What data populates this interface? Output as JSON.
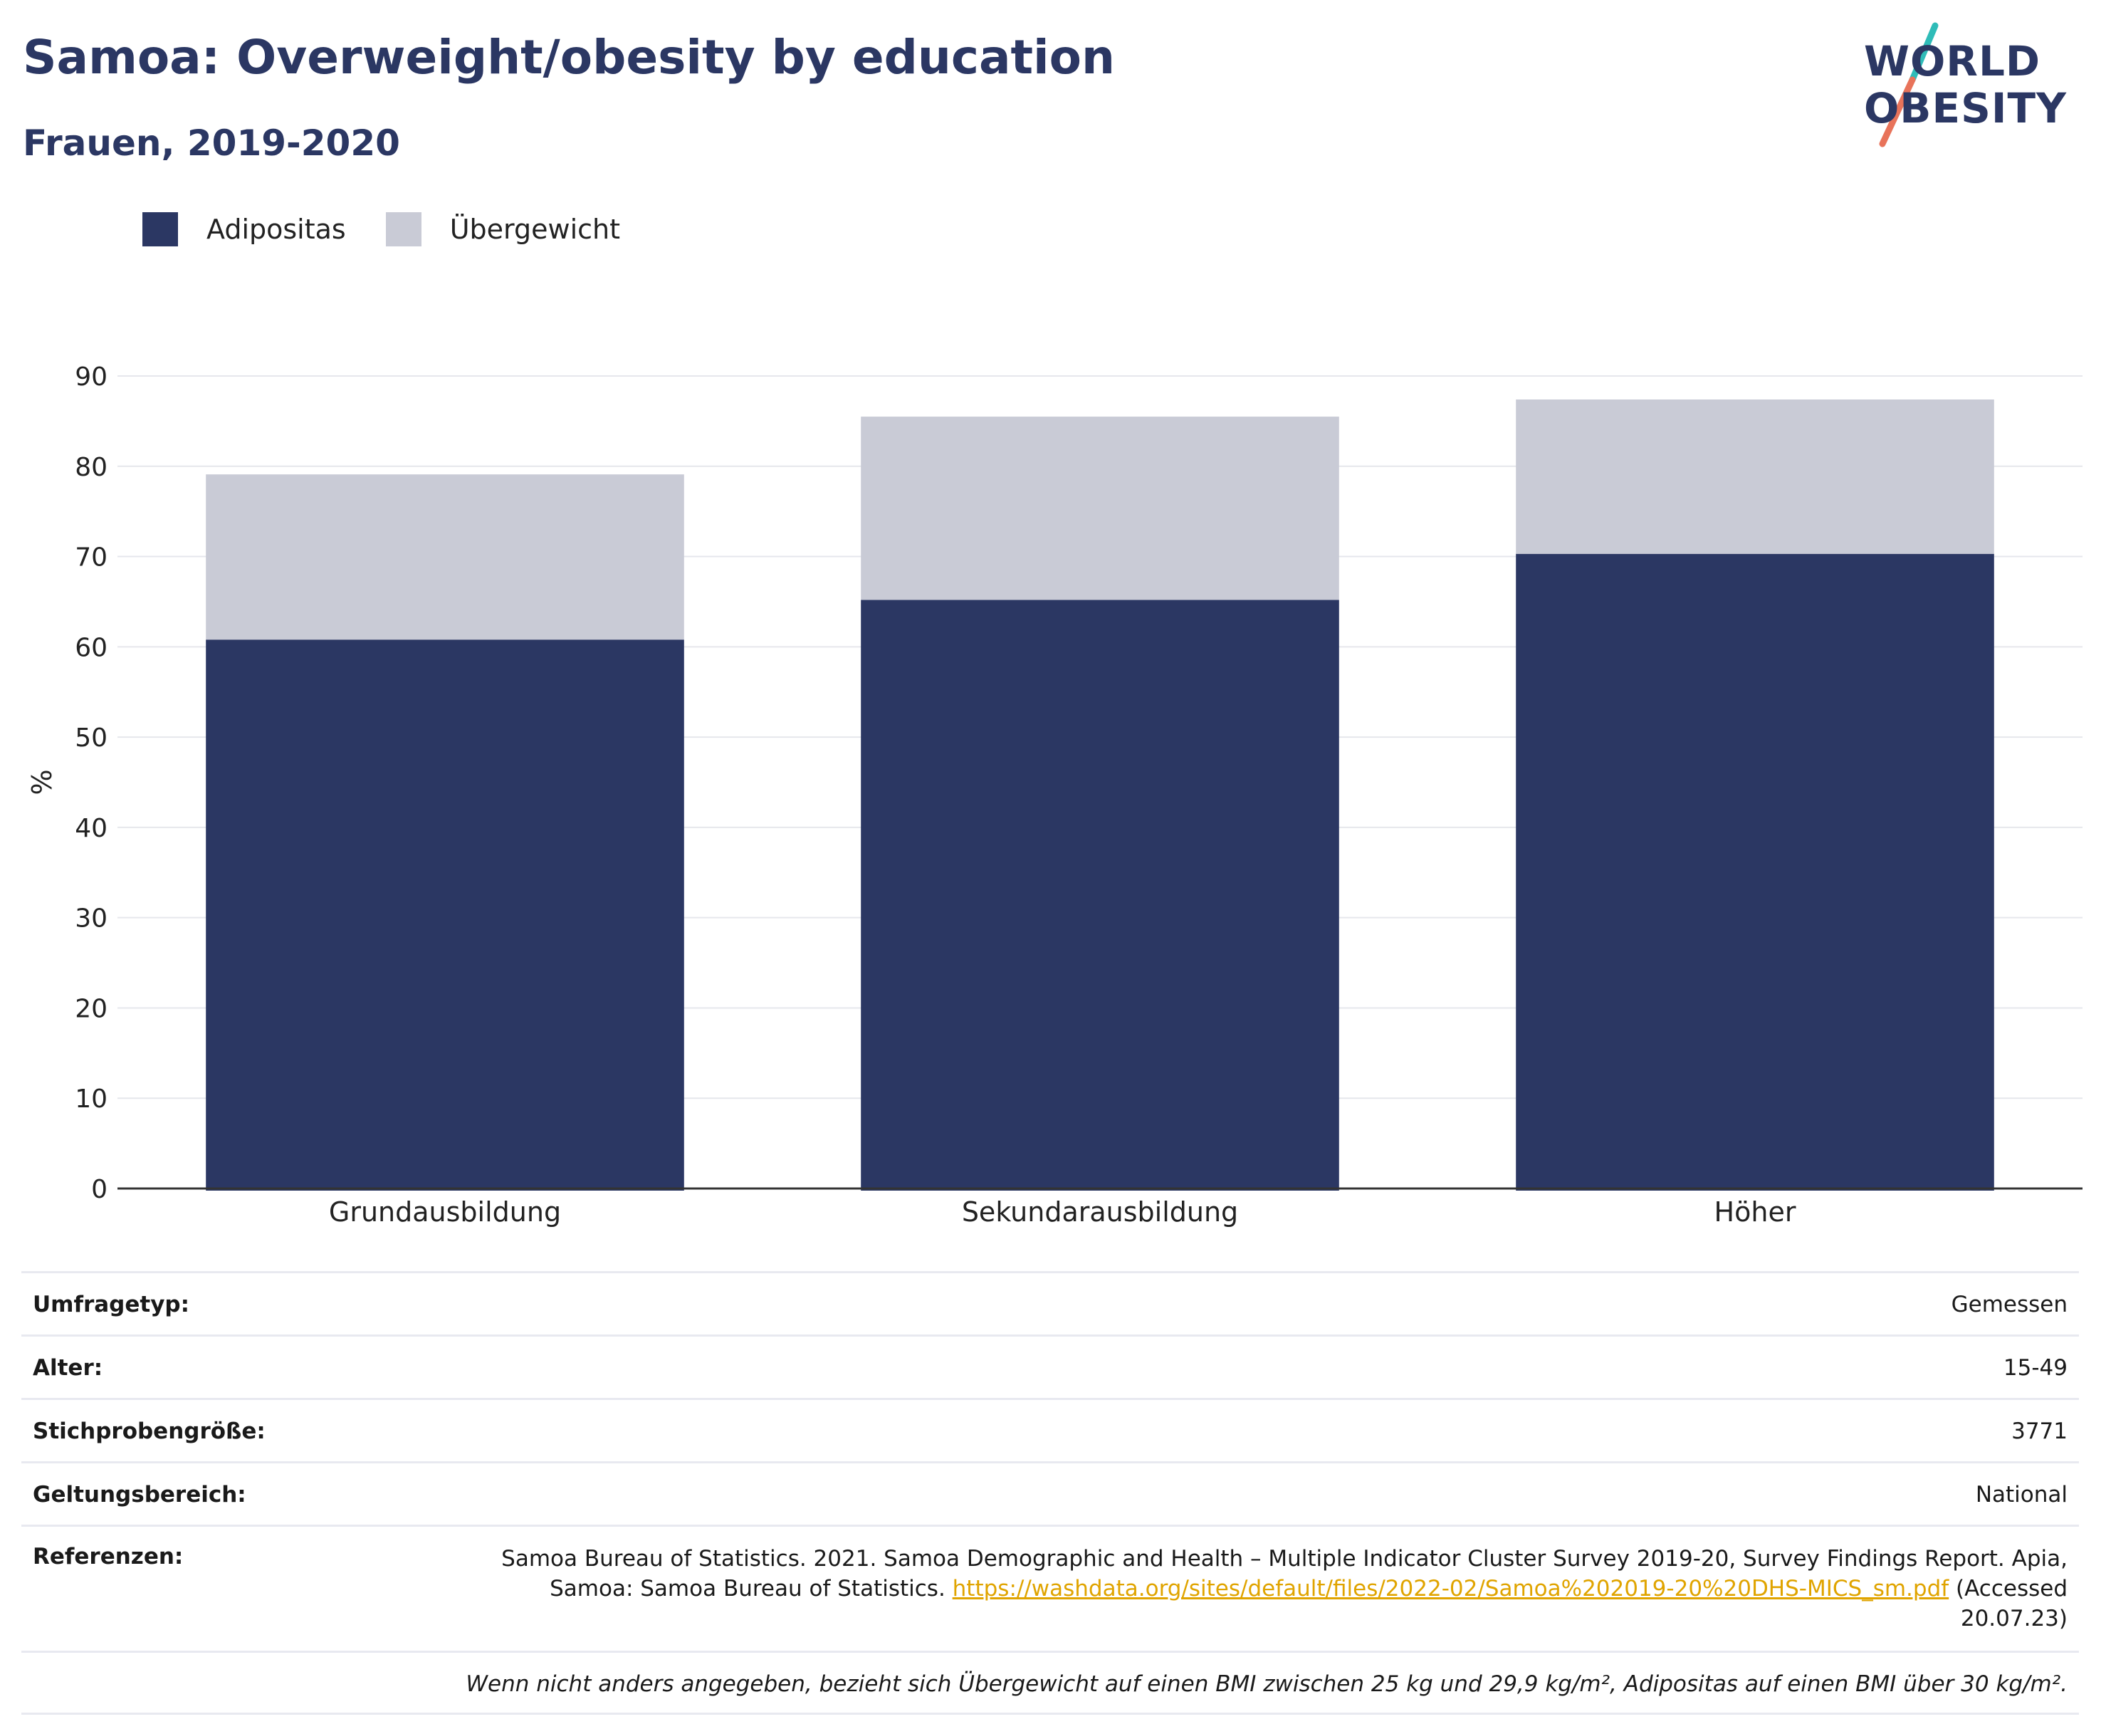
{
  "title": "Samoa: Overweight/obesity by education",
  "subtitle": "Frauen, 2019-2020",
  "logo": {
    "line1": "WORLD",
    "line2": "OBESITY"
  },
  "colors": {
    "obesity": "#2b3763",
    "overweight": "#c9cbd6",
    "accent_teal": "#2fbcb8",
    "accent_coral": "#e8735a",
    "link": "#e0a400"
  },
  "chart_data": {
    "type": "bar",
    "stacked": true,
    "categories": [
      "Grundausbildung",
      "Sekundarausbildung",
      "Höher"
    ],
    "series": [
      {
        "name": "Adipositas",
        "values": [
          60.8,
          65.2,
          70.3
        ]
      },
      {
        "name": "Übergewicht",
        "values": [
          18.3,
          20.3,
          17.1
        ]
      }
    ],
    "ylabel": "%",
    "xlabel": "",
    "ylim": [
      0,
      90
    ],
    "yticks": [
      0,
      10,
      20,
      30,
      40,
      50,
      60,
      70,
      80,
      90
    ],
    "grid": true,
    "legend": "top-left"
  },
  "meta": {
    "survey_type": {
      "label": "Umfragetyp:",
      "value": "Gemessen"
    },
    "age": {
      "label": "Alter:",
      "value": "15-49"
    },
    "sample_size": {
      "label": "Stichprobengröße:",
      "value": "3771"
    },
    "scope": {
      "label": "Geltungsbereich:",
      "value": "National"
    },
    "references": {
      "label": "Referenzen:",
      "text_before": "Samoa Bureau of Statistics. 2021. Samoa Demographic and Health – Multiple Indicator Cluster Survey 2019-20, Survey Findings Report. Apia, Samoa: Samoa Bureau of Statistics. ",
      "link": "https://washdata.org/sites/default/files/2022-02/Samoa%202019-20%20DHS-MICS_sm.pdf",
      "text_after": " (Accessed 20.07.23)"
    },
    "note": "Wenn nicht anders angegeben, bezieht sich Übergewicht auf einen BMI zwischen 25 kg und 29,9 kg/m², Adipositas auf einen BMI über 30 kg/m²."
  }
}
